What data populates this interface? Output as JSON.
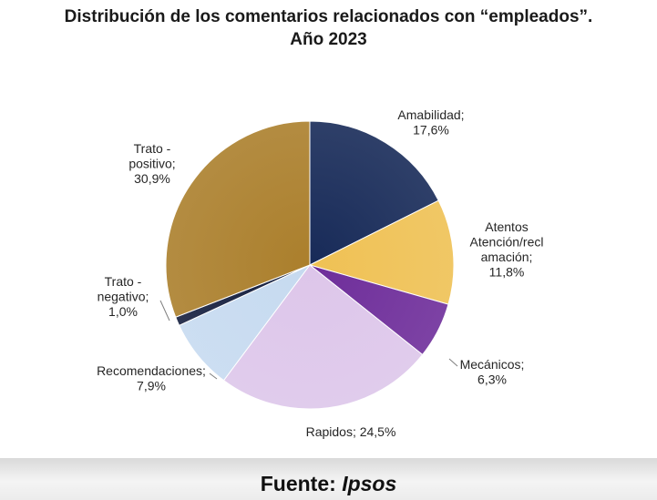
{
  "title_line1": "Distribución de los comentarios relacionados con “empleados”.",
  "title_line2": "Año 2023",
  "footer": {
    "prefix": "Fuente: ",
    "source": "Ipsos"
  },
  "chart_data": {
    "type": "pie",
    "slices": [
      {
        "label_lines": [
          "Amabilidad;",
          "17,6%"
        ],
        "value": 17.6,
        "color": "#172a58"
      },
      {
        "label_lines": [
          "Atentos",
          "Atención/recl",
          "amación;",
          "11,8%"
        ],
        "value": 11.8,
        "color": "#efc154"
      },
      {
        "label_lines": [
          "Mecánicos;",
          "6,3%"
        ],
        "value": 6.3,
        "color": "#6e2d9a"
      },
      {
        "label_lines": [
          "Rapidos; 24,5%"
        ],
        "value": 24.5,
        "color": "#ddc6ea"
      },
      {
        "label_lines": [
          "Recomendaciones;",
          "7,9%"
        ],
        "value": 7.9,
        "color": "#c6daf0"
      },
      {
        "label_lines": [
          "Trato -",
          "negativo;",
          "1,0%"
        ],
        "value": 1.0,
        "color": "#141e3e"
      },
      {
        "label_lines": [
          "Trato -",
          "positivo;",
          "30,9%"
        ],
        "value": 30.9,
        "color": "#ab7f2c"
      }
    ]
  }
}
